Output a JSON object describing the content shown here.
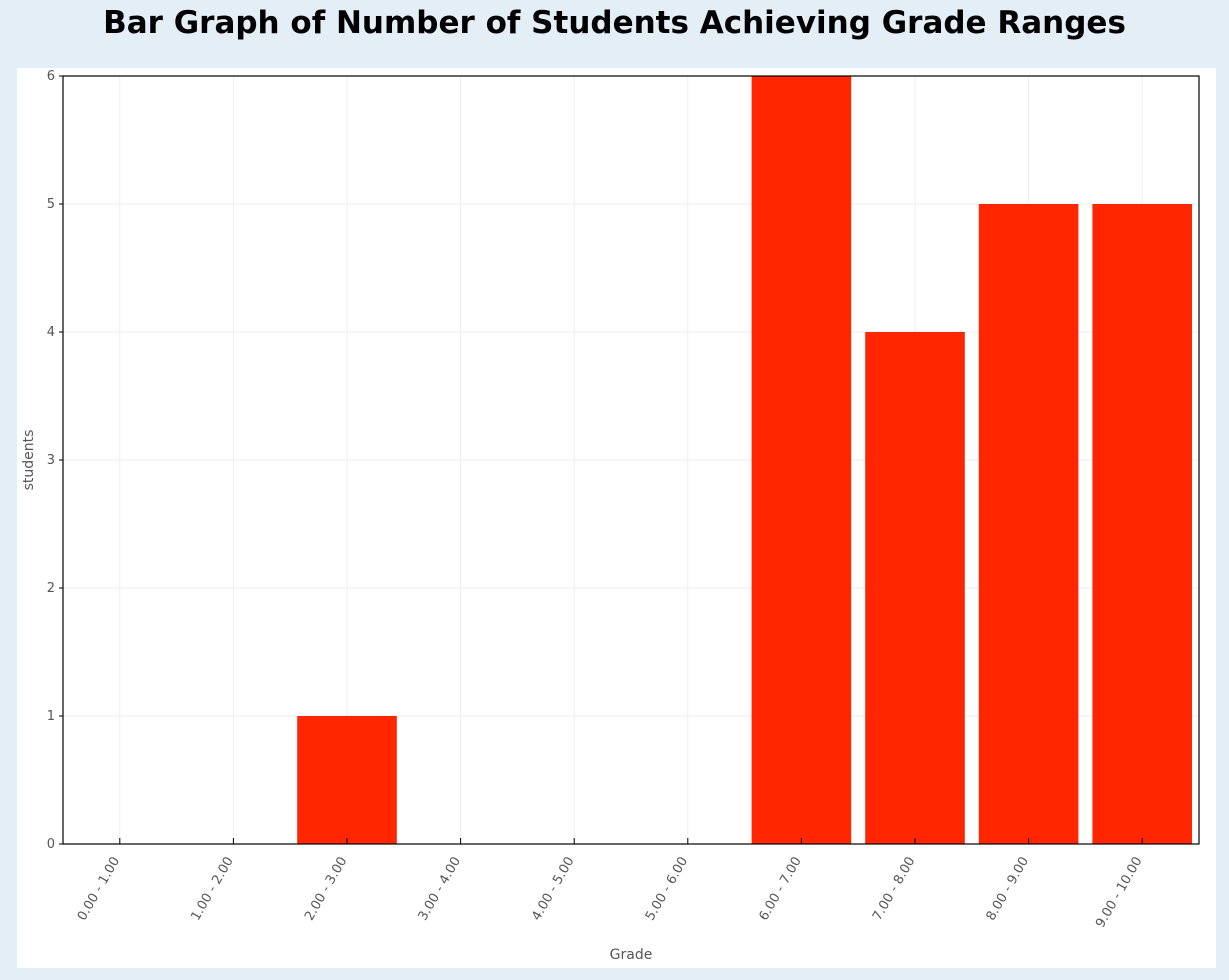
{
  "page": {
    "title": "Bar Graph of Number of Students Achieving Grade Ranges"
  },
  "colors": {
    "page_background": "#e4eef6",
    "panel_background": "#ffffff",
    "bar": "#ff2600",
    "grid": "#eeeeee",
    "axis": "#000000",
    "tick_text": "#555555"
  },
  "chart_data": {
    "type": "bar",
    "title": "",
    "xlabel": "Grade",
    "ylabel": "students",
    "categories": [
      "0.00 - 1.00",
      "1.00 - 2.00",
      "2.00 - 3.00",
      "3.00 - 4.00",
      "4.00 - 5.00",
      "5.00 - 6.00",
      "6.00 - 7.00",
      "7.00 - 8.00",
      "8.00 - 9.00",
      "9.00 - 10.00"
    ],
    "values": [
      0,
      0,
      1,
      0,
      0,
      0,
      6,
      4,
      5,
      5
    ],
    "ylim": [
      0,
      6
    ],
    "yticks": [
      0,
      1,
      2,
      3,
      4,
      5,
      6
    ],
    "grid": true,
    "x_tick_rotation": "rotated about 60 degrees counter-clockwise",
    "legend": "none"
  }
}
